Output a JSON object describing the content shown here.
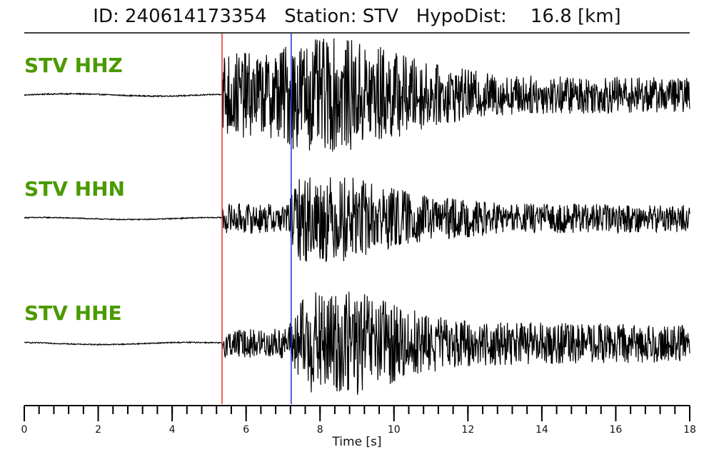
{
  "title": {
    "text": "ID: 240614173354   Station: STV   HypoDist:    16.8 [km]"
  },
  "colors": {
    "label": "#4a9a00",
    "trace": "#000000",
    "p_pick": "#e8302f",
    "s_pick": "#1f2fd6"
  },
  "chart_data": {
    "type": "line",
    "title": "ID: 240614173354   Station: STV   HypoDist:    16.8 [km]",
    "xlabel": "Time [s]",
    "ylabel": "",
    "xlim": [
      0,
      18
    ],
    "x_ticks": [
      "0",
      "2",
      "4",
      "6",
      "8",
      "10",
      "12",
      "14",
      "16",
      "18"
    ],
    "minor_tick_step": 0.4,
    "grid": false,
    "picks": {
      "p_time": 5.35,
      "s_time": 7.22
    },
    "series": [
      {
        "name": "STV HHZ",
        "envelope": [
          [
            0,
            0.03
          ],
          [
            5.3,
            0.03
          ],
          [
            5.4,
            0.8
          ],
          [
            6.5,
            0.7
          ],
          [
            7.2,
            0.95
          ],
          [
            8.5,
            1.0
          ],
          [
            9.5,
            0.9
          ],
          [
            11,
            0.55
          ],
          [
            13,
            0.35
          ],
          [
            18,
            0.3
          ]
        ]
      },
      {
        "name": "STV HHN",
        "envelope": [
          [
            0,
            0.03
          ],
          [
            5.3,
            0.03
          ],
          [
            5.4,
            0.3
          ],
          [
            7.1,
            0.3
          ],
          [
            7.5,
            0.9
          ],
          [
            8.8,
            0.85
          ],
          [
            9.6,
            0.7
          ],
          [
            11,
            0.45
          ],
          [
            13,
            0.3
          ],
          [
            18,
            0.28
          ]
        ]
      },
      {
        "name": "STV HHE",
        "envelope": [
          [
            0,
            0.03
          ],
          [
            5.3,
            0.03
          ],
          [
            5.4,
            0.25
          ],
          [
            7.1,
            0.3
          ],
          [
            7.6,
            0.95
          ],
          [
            9.0,
            1.0
          ],
          [
            10,
            0.75
          ],
          [
            11.5,
            0.45
          ],
          [
            13,
            0.4
          ],
          [
            18,
            0.35
          ]
        ]
      }
    ]
  }
}
